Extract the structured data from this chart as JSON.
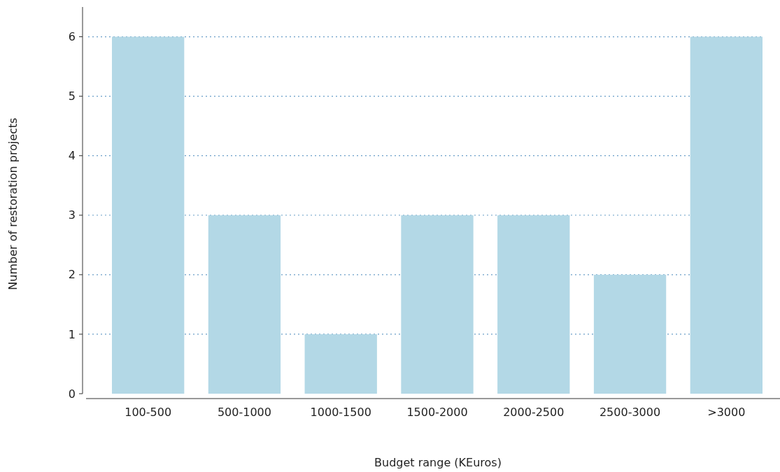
{
  "chart_data": {
    "type": "bar",
    "xlabel": "Budget range (KEuros)",
    "ylabel": "Number of restoration projects",
    "categories": [
      "100-500",
      "500-1000",
      "1000-1500",
      "1500-2000",
      "2000-2500",
      "2500-3000",
      ">3000"
    ],
    "values": [
      6,
      3,
      1,
      3,
      3,
      2,
      6
    ],
    "color": "#b3d8e6",
    "ylim": [
      0,
      6.5
    ],
    "yticks": [
      0,
      1,
      2,
      3,
      4,
      5,
      6
    ],
    "grid": "y"
  }
}
